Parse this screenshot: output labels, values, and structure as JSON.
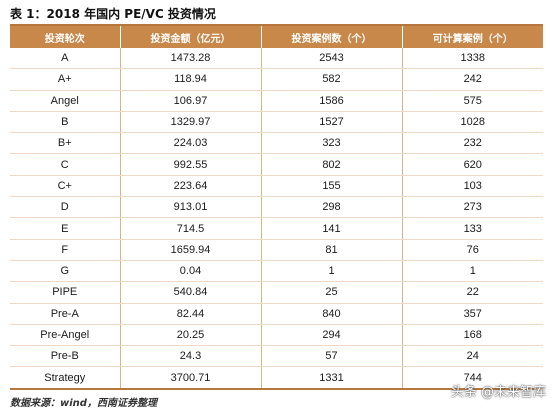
{
  "title": "表 1：2018 年国内 PE/VC 投资情况",
  "table": {
    "headers": [
      "投资轮次",
      "投资金额（亿元）",
      "投资案例数（个）",
      "可计算案例（个）"
    ],
    "rows": [
      [
        "A",
        "1473.28",
        "2543",
        "1338"
      ],
      [
        "A+",
        "118.94",
        "582",
        "242"
      ],
      [
        "Angel",
        "106.97",
        "1586",
        "575"
      ],
      [
        "B",
        "1329.97",
        "1527",
        "1028"
      ],
      [
        "B+",
        "224.03",
        "323",
        "232"
      ],
      [
        "C",
        "992.55",
        "802",
        "620"
      ],
      [
        "C+",
        "223.64",
        "155",
        "103"
      ],
      [
        "D",
        "913.01",
        "298",
        "273"
      ],
      [
        "E",
        "714.5",
        "141",
        "133"
      ],
      [
        "F",
        "1659.94",
        "81",
        "76"
      ],
      [
        "G",
        "0.04",
        "1",
        "1"
      ],
      [
        "PIPE",
        "540.84",
        "25",
        "22"
      ],
      [
        "Pre-A",
        "82.44",
        "840",
        "357"
      ],
      [
        "Pre-Angel",
        "20.25",
        "294",
        "168"
      ],
      [
        "Pre-B",
        "24.3",
        "57",
        "24"
      ],
      [
        "Strategy",
        "3700.71",
        "1331",
        "744"
      ]
    ]
  },
  "source": "数据来源：wind，西南证券整理",
  "watermark": "头条 @未来智库",
  "colors": {
    "header_bg": "#c8884a",
    "rule": "#b5773c"
  }
}
